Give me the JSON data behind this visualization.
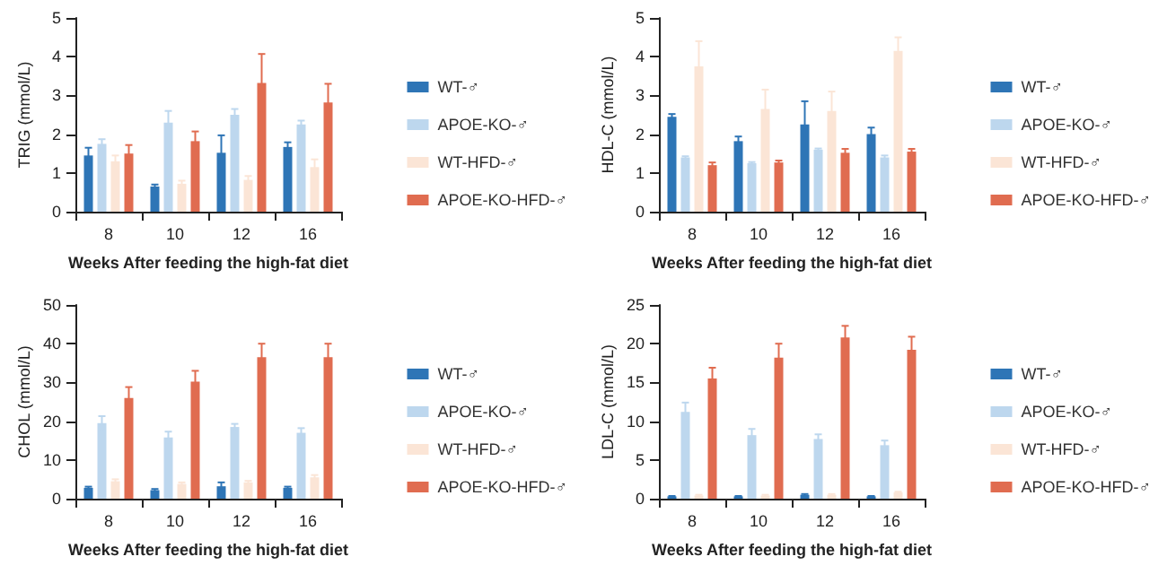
{
  "chart_data": [
    {
      "type": "bar",
      "xlabel": "Weeks After feeding the high-fat diet",
      "ylabel": "TRIG (mmol/L)",
      "categories": [
        "8",
        "10",
        "12",
        "16"
      ],
      "ylim": [
        0,
        5
      ],
      "yticks": [
        0,
        1,
        2,
        3,
        4,
        5
      ],
      "grid": false,
      "legend": "right",
      "series": [
        {
          "name": "WT-♂",
          "color": "#2e75b6",
          "values": [
            1.45,
            0.65,
            1.52,
            1.67
          ],
          "errors": [
            0.2,
            0.05,
            0.45,
            0.12
          ]
        },
        {
          "name": "APOE-KO-♂",
          "color": "#bdd7ee",
          "values": [
            1.75,
            2.3,
            2.5,
            2.25
          ],
          "errors": [
            0.12,
            0.3,
            0.15,
            0.1
          ]
        },
        {
          "name": "WT-HFD-♂",
          "color": "#fbe5d6",
          "values": [
            1.3,
            0.72,
            0.82,
            1.15
          ],
          "errors": [
            0.15,
            0.08,
            0.1,
            0.2
          ]
        },
        {
          "name": "APOE-KO-HFD-♂",
          "color": "#e06c50",
          "values": [
            1.5,
            1.82,
            3.32,
            2.82
          ],
          "errors": [
            0.22,
            0.25,
            0.75,
            0.48
          ]
        }
      ]
    },
    {
      "type": "bar",
      "xlabel": "Weeks After feeding the high-fat diet",
      "ylabel": "HDL-C (mmol/L)",
      "categories": [
        "8",
        "10",
        "12",
        "16"
      ],
      "ylim": [
        0,
        5
      ],
      "yticks": [
        0,
        1,
        2,
        3,
        4,
        5
      ],
      "grid": false,
      "legend": "right",
      "series": [
        {
          "name": "WT-♂",
          "color": "#2e75b6",
          "values": [
            2.45,
            1.82,
            2.25,
            2.0
          ],
          "errors": [
            0.07,
            0.12,
            0.6,
            0.17
          ]
        },
        {
          "name": "APOE-KO-♂",
          "color": "#bdd7ee",
          "values": [
            1.4,
            1.25,
            1.6,
            1.4
          ],
          "errors": [
            0.03,
            0.03,
            0.03,
            0.05
          ]
        },
        {
          "name": "WT-HFD-♂",
          "color": "#fbe5d6",
          "values": [
            3.75,
            2.65,
            2.6,
            4.15
          ],
          "errors": [
            0.65,
            0.5,
            0.5,
            0.35
          ]
        },
        {
          "name": "APOE-KO-HFD-♂",
          "color": "#e06c50",
          "values": [
            1.2,
            1.27,
            1.52,
            1.55
          ],
          "errors": [
            0.07,
            0.05,
            0.1,
            0.07
          ]
        }
      ]
    },
    {
      "type": "bar",
      "xlabel": "Weeks After feeding the high-fat diet",
      "ylabel": "CHOL (mmol/L)",
      "categories": [
        "8",
        "10",
        "12",
        "16"
      ],
      "ylim": [
        0,
        50
      ],
      "yticks": [
        0,
        10,
        20,
        30,
        40,
        50
      ],
      "grid": false,
      "legend": "right",
      "series": [
        {
          "name": "WT-♂",
          "color": "#2e75b6",
          "values": [
            2.8,
            2.2,
            3.2,
            2.8
          ],
          "errors": [
            0.3,
            0.3,
            1.0,
            0.3
          ]
        },
        {
          "name": "APOE-KO-♂",
          "color": "#bdd7ee",
          "values": [
            19.5,
            15.8,
            18.5,
            17
          ],
          "errors": [
            1.8,
            1.5,
            0.8,
            1.2
          ]
        },
        {
          "name": "WT-HFD-♂",
          "color": "#fbe5d6",
          "values": [
            4.5,
            3.8,
            4.2,
            5.5
          ],
          "errors": [
            0.5,
            0.4,
            0.4,
            0.6
          ]
        },
        {
          "name": "APOE-KO-HFD-♂",
          "color": "#e06c50",
          "values": [
            26,
            30.2,
            36.5,
            36.5
          ],
          "errors": [
            2.8,
            2.8,
            3.5,
            3.5
          ]
        }
      ]
    },
    {
      "type": "bar",
      "xlabel": "Weeks After feeding the high-fat diet",
      "ylabel": "LDL-C (mmol/L)",
      "categories": [
        "8",
        "10",
        "12",
        "16"
      ],
      "ylim": [
        0,
        25
      ],
      "yticks": [
        0,
        5,
        10,
        15,
        20,
        25
      ],
      "grid": false,
      "legend": "right",
      "series": [
        {
          "name": "WT-♂",
          "color": "#2e75b6",
          "values": [
            0.3,
            0.3,
            0.5,
            0.3
          ],
          "errors": [
            0.05,
            0.05,
            0.1,
            0.05
          ]
        },
        {
          "name": "APOE-KO-♂",
          "color": "#bdd7ee",
          "values": [
            11.2,
            8.2,
            7.7,
            6.9
          ],
          "errors": [
            1.2,
            0.8,
            0.6,
            0.6
          ]
        },
        {
          "name": "WT-HFD-♂",
          "color": "#fbe5d6",
          "values": [
            0.4,
            0.4,
            0.5,
            0.8
          ],
          "errors": [
            0.1,
            0.1,
            0.1,
            0.1
          ]
        },
        {
          "name": "APOE-KO-HFD-♂",
          "color": "#e06c50",
          "values": [
            15.5,
            18.2,
            20.8,
            19.2
          ],
          "errors": [
            1.4,
            1.8,
            1.5,
            1.7
          ]
        }
      ]
    }
  ]
}
